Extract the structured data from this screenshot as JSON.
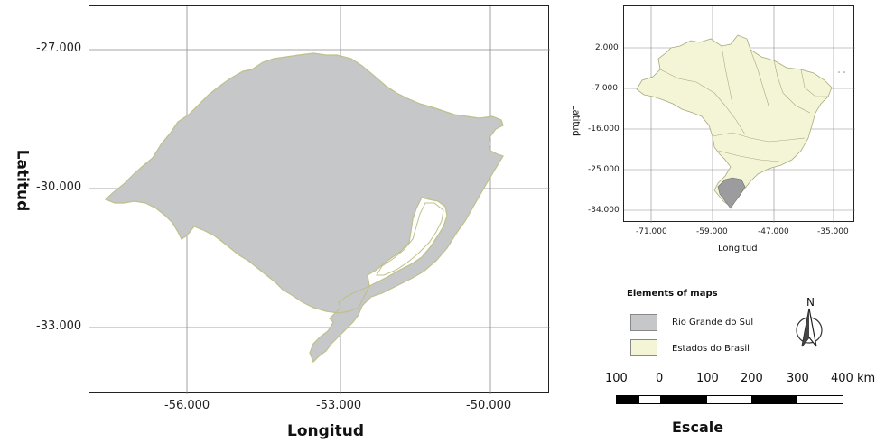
{
  "main_map": {
    "x_ticks": [
      "-56.000",
      "-53.000",
      "-50.000"
    ],
    "y_ticks": [
      "-27.000",
      "-30.000",
      "-33.000"
    ],
    "xlabel": "Longitud",
    "ylabel": "Latitud",
    "xlim": [
      -57.8,
      -48.2
    ],
    "ylim": [
      -34.5,
      -26.0
    ],
    "grid": true
  },
  "inset_map": {
    "x_ticks": [
      "-71.000",
      "-59.000",
      "-47.000",
      "-35.000"
    ],
    "y_ticks": [
      "2.000",
      "-7.000",
      "-16.000",
      "-25.000",
      "-34.000"
    ],
    "xlabel": "Longitud",
    "ylabel": "Latitud",
    "grid": true
  },
  "legend": {
    "title": "Elements of maps",
    "items": [
      {
        "label": "Rio Grande do Sul",
        "color": "#c6c7c9"
      },
      {
        "label": "Estados do Brasil",
        "color": "#f4f5d6"
      }
    ]
  },
  "north_arrow": {
    "label": "N"
  },
  "scale_bar": {
    "labels": [
      "100",
      "0",
      "100",
      "200",
      "300",
      "400 km"
    ],
    "title": "Escale"
  },
  "colors": {
    "state_fill": "#c6c7c9",
    "state_outline": "#bfc08a",
    "brazil_fill": "#f4f5d6",
    "brazil_border": "#a8aa7c",
    "grid": "#8a8a8a"
  }
}
